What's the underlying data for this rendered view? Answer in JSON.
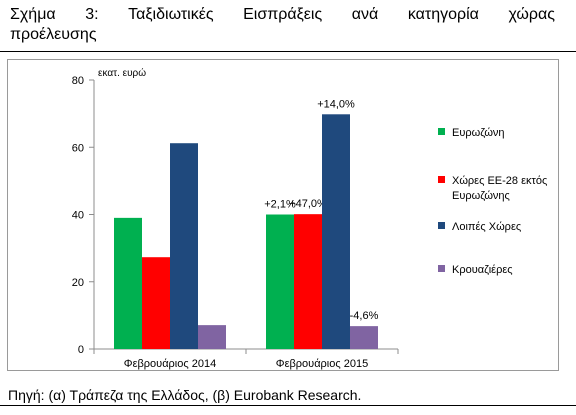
{
  "figure": {
    "title_line1_words": [
      "Σχήμα",
      "3:",
      "Ταξιδιωτικές",
      "Εισπράξεις",
      "ανά",
      "κατηγορία",
      "χώρας"
    ],
    "title_line2": "προέλευσης",
    "source": "Πηγή: (α) Τράπεζα της Ελλάδος, (β) Eurobank Research."
  },
  "chart_data": {
    "type": "bar",
    "title": "",
    "ylabel": "εκατ. ευρώ",
    "xlabel": "",
    "ylim": [
      0,
      80
    ],
    "yticks": [
      0,
      20,
      40,
      60,
      80
    ],
    "grid": false,
    "legend_position": "right",
    "categories": [
      "Φεβρουάριος 2014",
      "Φεβρουάριος 2015"
    ],
    "series": [
      {
        "name": "Ευρωζώνη",
        "color": "#00b050",
        "values": [
          39,
          40
        ],
        "labels": [
          "",
          "+2,1%"
        ]
      },
      {
        "name": "Χώρες ΕΕ-28 εκτός Ευρωζώνης",
        "color": "#ff0000",
        "values": [
          27.3,
          40.1
        ],
        "labels": [
          "",
          "+47,0%"
        ]
      },
      {
        "name": "Λοιπές Χώρες",
        "color": "#1f497d",
        "values": [
          61.2,
          69.8
        ],
        "labels": [
          "",
          "+14,0%"
        ]
      },
      {
        "name": "Κρουαζιέρες",
        "color": "#8064a2",
        "values": [
          7.1,
          6.8
        ],
        "labels": [
          "",
          "-4,6%"
        ]
      }
    ],
    "legend_lines": [
      [
        "Ευρωζώνη"
      ],
      [
        "Χώρες ΕΕ-28 εκτός",
        "Ευρωζώνης"
      ],
      [
        "Λοιπές Χώρες"
      ],
      [
        "Κρουαζιέρες"
      ]
    ]
  }
}
